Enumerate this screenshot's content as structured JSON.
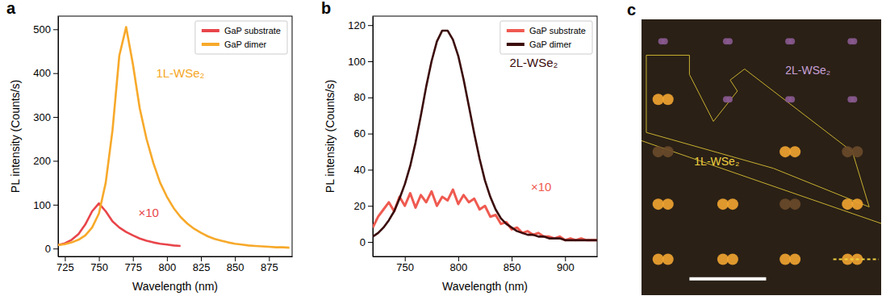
{
  "chart_data": [
    {
      "type": "line",
      "panel_label": "a",
      "x_label": "Wavelength (nm)",
      "y_label": "PL intensity (Counts/s)",
      "xlim": [
        720,
        892
      ],
      "xticks": [
        725,
        750,
        775,
        800,
        825,
        850,
        875
      ],
      "ylim": [
        -18,
        530
      ],
      "yticks": [
        0,
        100,
        200,
        300,
        400,
        500
      ],
      "legend": "upper right",
      "x": [
        720,
        725,
        730,
        735,
        740,
        745,
        750,
        755,
        760,
        765,
        770,
        775,
        780,
        785,
        790,
        795,
        800,
        805,
        810,
        815,
        820,
        825,
        830,
        835,
        840,
        845,
        850,
        855,
        860,
        865,
        870,
        875,
        880,
        885,
        890
      ],
      "series": [
        {
          "name": "GaP substrate",
          "color": "#e8454a",
          "values": [
            8,
            12,
            20,
            33,
            55,
            85,
            103,
            85,
            62,
            48,
            38,
            30,
            23,
            18,
            14,
            11,
            9,
            7,
            6,
            null,
            null,
            null,
            null,
            null,
            null,
            null,
            null,
            null,
            null,
            null,
            null,
            null,
            null,
            null,
            null
          ]
        },
        {
          "name": "GaP dimer",
          "color": "#f7a92a",
          "values": [
            8,
            10,
            14,
            20,
            30,
            48,
            80,
            150,
            270,
            440,
            505,
            420,
            320,
            250,
            195,
            150,
            118,
            92,
            72,
            57,
            45,
            36,
            28,
            22,
            18,
            14,
            11,
            9,
            7,
            6,
            5,
            4,
            3,
            3,
            2
          ]
        }
      ],
      "annotations": [
        {
          "text": "1L-WSe₂",
          "x": 792,
          "y": 390,
          "color": "#f5a623"
        },
        {
          "text": "×10",
          "x": 779,
          "y": 72,
          "color": "#e8454a"
        }
      ]
    },
    {
      "type": "line",
      "panel_label": "b",
      "x_label": "Wavelength (nm)",
      "y_label": "PL intensity (Counts/s)",
      "xlim": [
        720,
        930
      ],
      "xticks": [
        750,
        800,
        850,
        900
      ],
      "ylim": [
        -8,
        125
      ],
      "yticks": [
        0,
        20,
        40,
        60,
        80,
        100,
        120
      ],
      "legend": "upper right",
      "x": [
        720,
        725,
        730,
        735,
        740,
        745,
        750,
        755,
        760,
        765,
        770,
        775,
        780,
        785,
        790,
        795,
        800,
        805,
        810,
        815,
        820,
        825,
        830,
        835,
        840,
        845,
        850,
        855,
        860,
        865,
        870,
        875,
        880,
        885,
        890,
        895,
        900,
        905,
        910,
        915,
        920,
        925,
        930
      ],
      "series": [
        {
          "name": "GaP substrate",
          "color": "#ef5a50",
          "values": [
            8,
            14,
            18,
            22,
            17,
            25,
            20,
            27,
            19,
            26,
            22,
            28,
            20,
            25,
            23,
            29,
            21,
            26,
            22,
            24,
            18,
            20,
            14,
            15,
            10,
            11,
            7,
            8,
            5,
            6,
            4,
            5,
            3,
            3,
            2,
            3,
            1,
            2,
            1,
            2,
            1,
            1,
            1
          ]
        },
        {
          "name": "GaP dimer",
          "color": "#3b0b0b",
          "values": [
            3,
            5,
            8,
            12,
            17,
            24,
            32,
            42,
            55,
            70,
            86,
            100,
            111,
            117,
            117,
            112,
            103,
            90,
            75,
            60,
            46,
            34,
            25,
            18,
            13,
            10,
            8,
            6,
            5,
            4,
            4,
            3,
            3,
            2,
            2,
            2,
            1,
            1,
            1,
            1,
            1,
            1,
            1
          ]
        }
      ],
      "annotations": [
        {
          "text": "2L-WSe₂",
          "x": 848,
          "y": 97,
          "color": "#3b0b0b"
        },
        {
          "text": "×10",
          "x": 868,
          "y": 28,
          "color": "#ef5a50"
        }
      ]
    }
  ],
  "image": {
    "panel_label": "c",
    "labels": [
      {
        "text": "2L-WSe₂",
        "color": "#c9a0d8"
      },
      {
        "text": "1L-WSe₂",
        "color": "#f0d040"
      }
    ]
  }
}
